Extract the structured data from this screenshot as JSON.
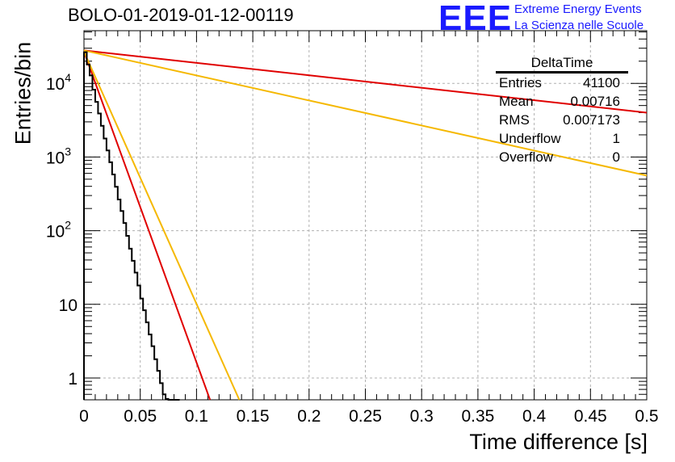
{
  "title": "BOLO-01-2019-01-12-00119",
  "logo": {
    "text": "EEE",
    "line1": "Extreme Energy Events",
    "line2": "La Scienza nelle Scuole",
    "color": "#1a1aff"
  },
  "stats_box": {
    "title": "DeltaTime",
    "rows": [
      {
        "label": "Entries",
        "value": "41100"
      },
      {
        "label": "Mean",
        "value": "0.00716"
      },
      {
        "label": "RMS",
        "value": "0.007173"
      },
      {
        "label": "Underflow",
        "value": "1"
      },
      {
        "label": "Overflow",
        "value": "0"
      }
    ]
  },
  "chart_data": {
    "type": "line",
    "xlabel": "Time difference [s]",
    "ylabel": "Entries/bin",
    "xlim": [
      0,
      0.5
    ],
    "ylim": [
      0.5,
      35000
    ],
    "log_y": true,
    "grid": true,
    "x_ticks": [
      "0",
      "0.05",
      "0.1",
      "0.15",
      "0.2",
      "0.25",
      "0.3",
      "0.35",
      "0.4",
      "0.45",
      "0.5"
    ],
    "y_ticks": [
      {
        "base": "1",
        "exp": ""
      },
      {
        "base": "10",
        "exp": ""
      },
      {
        "base": "10",
        "exp": "2"
      },
      {
        "base": "10",
        "exp": "3"
      },
      {
        "base": "10",
        "exp": "4"
      }
    ],
    "histogram": {
      "color": "#000000",
      "bin_width": 0.0025,
      "values": [
        26500,
        18000,
        12800,
        8200,
        5600,
        3900,
        2650,
        1780,
        1230,
        850,
        580,
        395,
        265,
        185,
        127,
        85,
        57,
        39,
        27,
        18,
        12,
        8.3,
        5.7,
        3.9,
        2.7,
        1.8,
        1.25,
        0.85,
        0.6,
        0.52,
        0.5,
        0.5,
        0.5,
        0.5
      ]
    },
    "series": [
      {
        "color": "#e00000",
        "points": [
          [
            0,
            27000
          ],
          [
            0.112,
            0.5
          ]
        ]
      },
      {
        "color": "#f5b800",
        "points": [
          [
            0,
            27000
          ],
          [
            0.138,
            0.5
          ]
        ]
      },
      {
        "color": "#e00000",
        "points": [
          [
            0,
            28000
          ],
          [
            0.5,
            4000
          ]
        ]
      },
      {
        "color": "#f5b800",
        "points": [
          [
            0,
            28000
          ],
          [
            0.5,
            560
          ]
        ]
      }
    ]
  }
}
